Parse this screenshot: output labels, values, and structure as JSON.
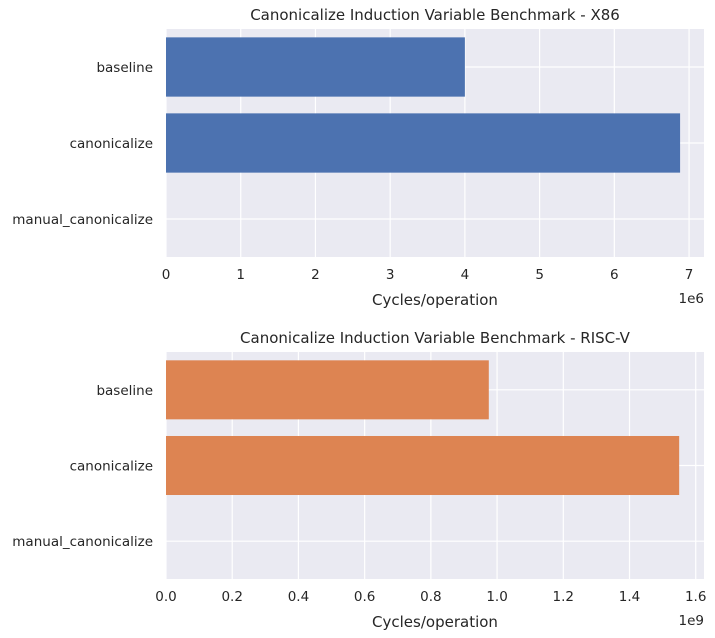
{
  "chart_data": [
    {
      "type": "bar",
      "orientation": "horizontal",
      "title": "Canonicalize Induction Variable Benchmark - X86",
      "categories": [
        "baseline",
        "canonicalize",
        "manual_canonicalize"
      ],
      "values": [
        4.0,
        6.88,
        0
      ],
      "xlabel": "Cycles/operation",
      "ylabel": "",
      "xlim": [
        0,
        7.2
      ],
      "xticks": [
        0,
        1,
        2,
        3,
        4,
        5,
        6,
        7
      ],
      "xtick_labels": [
        "0",
        "1",
        "2",
        "3",
        "4",
        "5",
        "6",
        "7"
      ],
      "offset_label": "1e6",
      "color": "#4c72b0",
      "grid": true
    },
    {
      "type": "bar",
      "orientation": "horizontal",
      "title": "Canonicalize Induction Variable Benchmark - RISC-V",
      "categories": [
        "baseline",
        "canonicalize",
        "manual_canonicalize"
      ],
      "values": [
        0.975,
        1.55,
        0
      ],
      "xlabel": "Cycles/operation",
      "ylabel": "",
      "xlim": [
        0,
        1.625
      ],
      "xticks": [
        0,
        0.2,
        0.4,
        0.6,
        0.8,
        1.0,
        1.2,
        1.4,
        1.6
      ],
      "xtick_labels": [
        "0.0",
        "0.2",
        "0.4",
        "0.6",
        "0.8",
        "1.0",
        "1.2",
        "1.4",
        "1.6"
      ],
      "offset_label": "1e9",
      "color": "#dd8452",
      "grid": true
    }
  ]
}
